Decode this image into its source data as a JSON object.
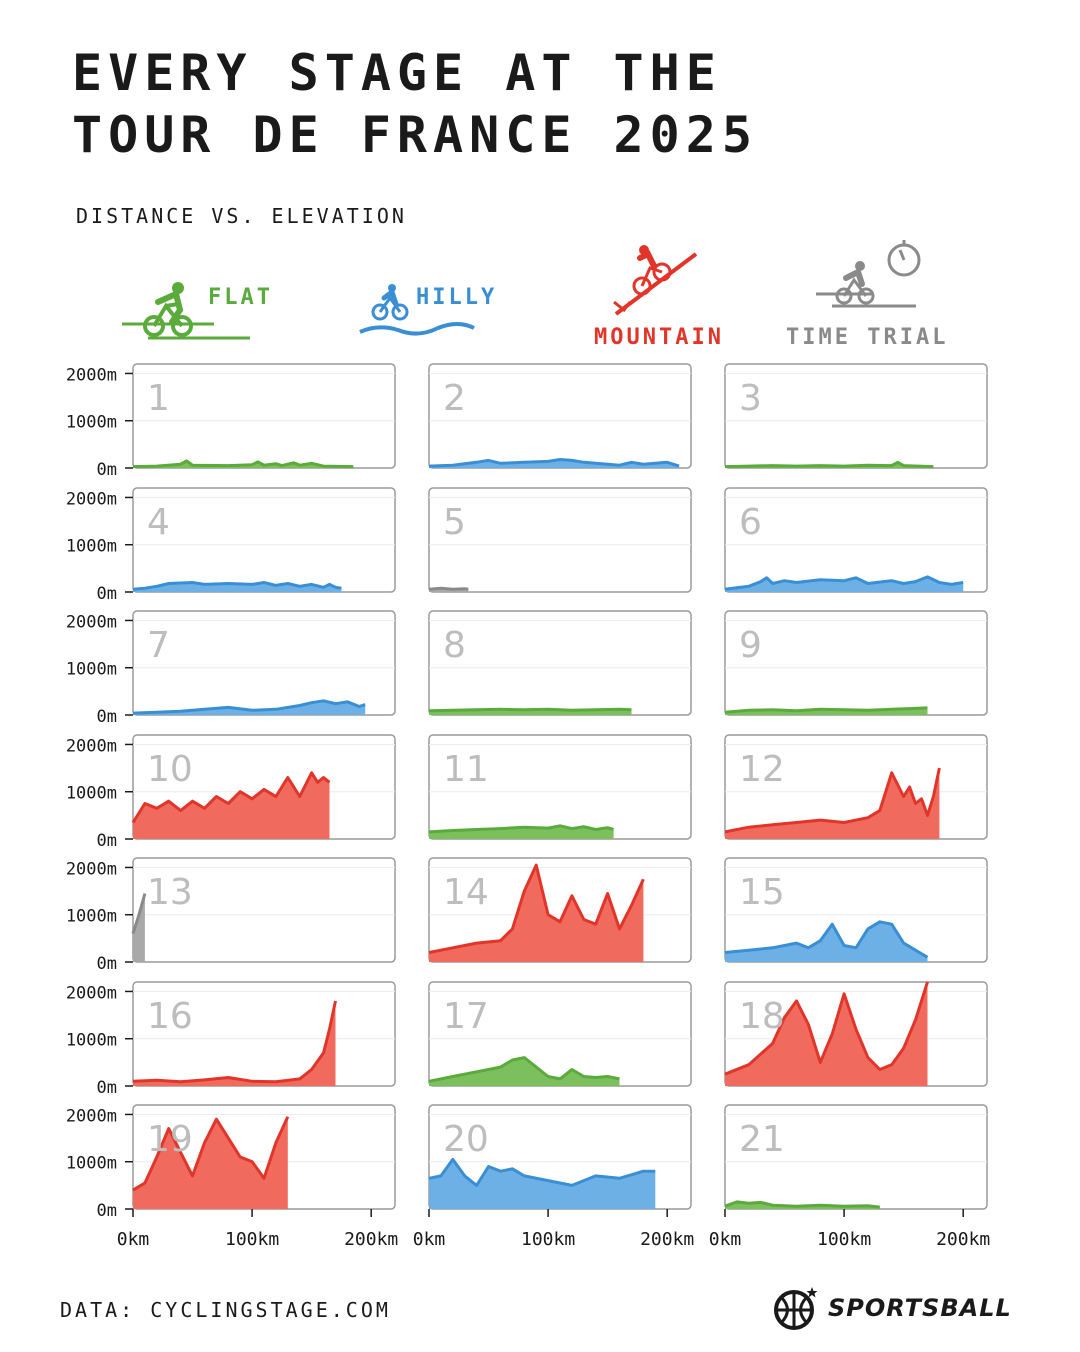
{
  "title": {
    "line1": "EVERY STAGE AT THE",
    "line2": "TOUR DE FRANCE 2025"
  },
  "subtitle": "DISTANCE VS. ELEVATION",
  "legend": [
    {
      "key": "flat",
      "label": "FLAT",
      "color": "#5aaa3c"
    },
    {
      "key": "hilly",
      "label": "HILLY",
      "color": "#3a8fd4"
    },
    {
      "key": "mountain",
      "label": "MOUNTAIN",
      "color": "#e2352a"
    },
    {
      "key": "tt",
      "label": "TIME TRIAL",
      "color": "#8a8a8a"
    }
  ],
  "colors": {
    "flat": {
      "line": "#5aaa3c",
      "fill": "#7cc05d"
    },
    "hilly": {
      "line": "#3a8fd4",
      "fill": "#6db0e6"
    },
    "mountain": {
      "line": "#e2352a",
      "fill": "#f06a5e"
    },
    "tt": {
      "line": "#8a8a8a",
      "fill": "#a9a9a9"
    }
  },
  "axis": {
    "y_ticks": [
      0,
      1000,
      2000
    ],
    "y_tick_labels": [
      "0m",
      "1000m",
      "2000m"
    ],
    "x_ticks": [
      0,
      100,
      200
    ],
    "x_tick_labels": [
      "0km",
      "100km",
      "200km"
    ]
  },
  "source": "DATA: CYCLINGSTAGE.COM",
  "brand": "SPORTSBALL",
  "chart_data": {
    "type": "area",
    "title": "EVERY STAGE AT THE TOUR DE FRANCE 2025",
    "subtitle": "DISTANCE VS. ELEVATION",
    "xlabel": "",
    "ylabel": "",
    "xlim": [
      0,
      220
    ],
    "ylim": [
      0,
      2200
    ],
    "grid": true,
    "legend_position": "top",
    "stages": [
      {
        "stage": "1",
        "type": "flat",
        "x": [
          0,
          20,
          40,
          45,
          50,
          80,
          100,
          105,
          110,
          120,
          125,
          135,
          140,
          150,
          160,
          185
        ],
        "y": [
          30,
          40,
          80,
          150,
          60,
          50,
          70,
          130,
          60,
          90,
          50,
          110,
          60,
          100,
          40,
          30
        ]
      },
      {
        "stage": "2",
        "type": "hilly",
        "x": [
          0,
          20,
          40,
          50,
          60,
          80,
          100,
          110,
          120,
          130,
          140,
          160,
          170,
          180,
          200,
          210
        ],
        "y": [
          40,
          60,
          120,
          160,
          100,
          120,
          140,
          180,
          160,
          120,
          100,
          60,
          120,
          80,
          120,
          40
        ]
      },
      {
        "stage": "3",
        "type": "flat",
        "x": [
          0,
          20,
          40,
          60,
          80,
          100,
          120,
          140,
          145,
          150,
          175
        ],
        "y": [
          30,
          40,
          50,
          40,
          50,
          40,
          60,
          50,
          120,
          50,
          30
        ]
      },
      {
        "stage": "4",
        "type": "hilly",
        "x": [
          0,
          10,
          20,
          30,
          50,
          60,
          80,
          100,
          110,
          120,
          130,
          140,
          150,
          160,
          165,
          170,
          175
        ],
        "y": [
          60,
          80,
          120,
          180,
          200,
          160,
          180,
          160,
          200,
          140,
          180,
          120,
          160,
          100,
          160,
          100,
          80
        ]
      },
      {
        "stage": "5",
        "type": "tt",
        "x": [
          0,
          10,
          20,
          30,
          33
        ],
        "y": [
          60,
          80,
          60,
          70,
          60
        ]
      },
      {
        "stage": "6",
        "type": "hilly",
        "x": [
          0,
          20,
          30,
          35,
          40,
          50,
          60,
          80,
          100,
          110,
          120,
          140,
          150,
          160,
          170,
          180,
          190,
          200
        ],
        "y": [
          60,
          120,
          220,
          300,
          180,
          240,
          200,
          260,
          240,
          300,
          180,
          240,
          180,
          220,
          320,
          200,
          160,
          200
        ]
      },
      {
        "stage": "7",
        "type": "hilly",
        "x": [
          0,
          20,
          40,
          60,
          80,
          100,
          120,
          140,
          150,
          160,
          170,
          180,
          190,
          195
        ],
        "y": [
          40,
          60,
          80,
          120,
          160,
          100,
          120,
          200,
          260,
          300,
          240,
          280,
          180,
          220
        ]
      },
      {
        "stage": "8",
        "type": "flat",
        "x": [
          0,
          20,
          40,
          60,
          80,
          100,
          120,
          140,
          160,
          170
        ],
        "y": [
          90,
          100,
          110,
          120,
          110,
          120,
          100,
          110,
          120,
          110
        ]
      },
      {
        "stage": "9",
        "type": "flat",
        "x": [
          0,
          20,
          40,
          60,
          80,
          100,
          120,
          140,
          160,
          170
        ],
        "y": [
          60,
          100,
          110,
          90,
          120,
          110,
          100,
          120,
          140,
          150
        ]
      },
      {
        "stage": "10",
        "type": "mountain",
        "x": [
          0,
          10,
          20,
          30,
          40,
          50,
          60,
          70,
          80,
          90,
          100,
          110,
          120,
          130,
          135,
          140,
          150,
          155,
          160,
          165
        ],
        "y": [
          350,
          750,
          650,
          800,
          600,
          800,
          650,
          900,
          750,
          1000,
          850,
          1050,
          900,
          1300,
          1100,
          900,
          1400,
          1200,
          1300,
          1200
        ]
      },
      {
        "stage": "11",
        "type": "flat",
        "x": [
          0,
          20,
          40,
          60,
          80,
          100,
          110,
          120,
          130,
          140,
          150,
          155
        ],
        "y": [
          150,
          180,
          200,
          220,
          250,
          230,
          280,
          220,
          260,
          200,
          240,
          200
        ]
      },
      {
        "stage": "12",
        "type": "mountain",
        "x": [
          0,
          20,
          40,
          60,
          80,
          100,
          120,
          130,
          140,
          150,
          155,
          160,
          165,
          170,
          175,
          180
        ],
        "y": [
          150,
          250,
          300,
          350,
          400,
          350,
          450,
          600,
          1400,
          900,
          1100,
          750,
          850,
          500,
          900,
          1500
        ]
      },
      {
        "stage": "13",
        "type": "tt",
        "x": [
          0,
          5,
          10
        ],
        "y": [
          600,
          1000,
          1450
        ]
      },
      {
        "stage": "14",
        "type": "mountain",
        "x": [
          0,
          20,
          40,
          60,
          70,
          80,
          90,
          100,
          110,
          120,
          130,
          140,
          150,
          160,
          170,
          180
        ],
        "y": [
          200,
          300,
          400,
          450,
          700,
          1500,
          2050,
          1000,
          850,
          1400,
          900,
          800,
          1450,
          700,
          1200,
          1750
        ]
      },
      {
        "stage": "15",
        "type": "hilly",
        "x": [
          0,
          20,
          40,
          60,
          70,
          80,
          90,
          100,
          110,
          120,
          130,
          140,
          150,
          160,
          170
        ],
        "y": [
          200,
          250,
          300,
          400,
          300,
          450,
          800,
          350,
          300,
          700,
          850,
          800,
          400,
          250,
          100
        ]
      },
      {
        "stage": "16",
        "type": "mountain",
        "x": [
          0,
          20,
          40,
          60,
          80,
          100,
          120,
          140,
          150,
          160,
          165,
          170
        ],
        "y": [
          100,
          120,
          90,
          130,
          180,
          100,
          90,
          150,
          350,
          700,
          1200,
          1800
        ]
      },
      {
        "stage": "17",
        "type": "flat",
        "x": [
          0,
          20,
          40,
          60,
          70,
          80,
          90,
          100,
          110,
          120,
          130,
          140,
          150,
          160
        ],
        "y": [
          100,
          200,
          300,
          400,
          550,
          600,
          400,
          200,
          150,
          350,
          200,
          180,
          200,
          150
        ]
      },
      {
        "stage": "18",
        "type": "mountain",
        "x": [
          0,
          20,
          40,
          50,
          60,
          70,
          80,
          85,
          90,
          100,
          110,
          120,
          130,
          140,
          150,
          160,
          170
        ],
        "y": [
          250,
          450,
          900,
          1450,
          1800,
          1300,
          500,
          800,
          1100,
          1950,
          1200,
          600,
          350,
          450,
          800,
          1400,
          2200
        ]
      },
      {
        "stage": "19",
        "type": "mountain",
        "x": [
          0,
          10,
          20,
          30,
          40,
          50,
          60,
          70,
          80,
          90,
          100,
          110,
          120,
          130
        ],
        "y": [
          400,
          550,
          1100,
          1700,
          1200,
          700,
          1400,
          1900,
          1500,
          1100,
          1000,
          650,
          1400,
          1950
        ]
      },
      {
        "stage": "20",
        "type": "hilly",
        "x": [
          0,
          10,
          20,
          30,
          40,
          50,
          60,
          70,
          80,
          100,
          120,
          140,
          160,
          180,
          190
        ],
        "y": [
          650,
          700,
          1050,
          700,
          500,
          900,
          800,
          850,
          700,
          600,
          500,
          700,
          650,
          800,
          800
        ]
      },
      {
        "stage": "21",
        "type": "flat",
        "x": [
          0,
          10,
          20,
          30,
          40,
          60,
          80,
          100,
          120,
          130
        ],
        "y": [
          60,
          150,
          120,
          140,
          80,
          60,
          80,
          60,
          70,
          40
        ]
      }
    ]
  }
}
